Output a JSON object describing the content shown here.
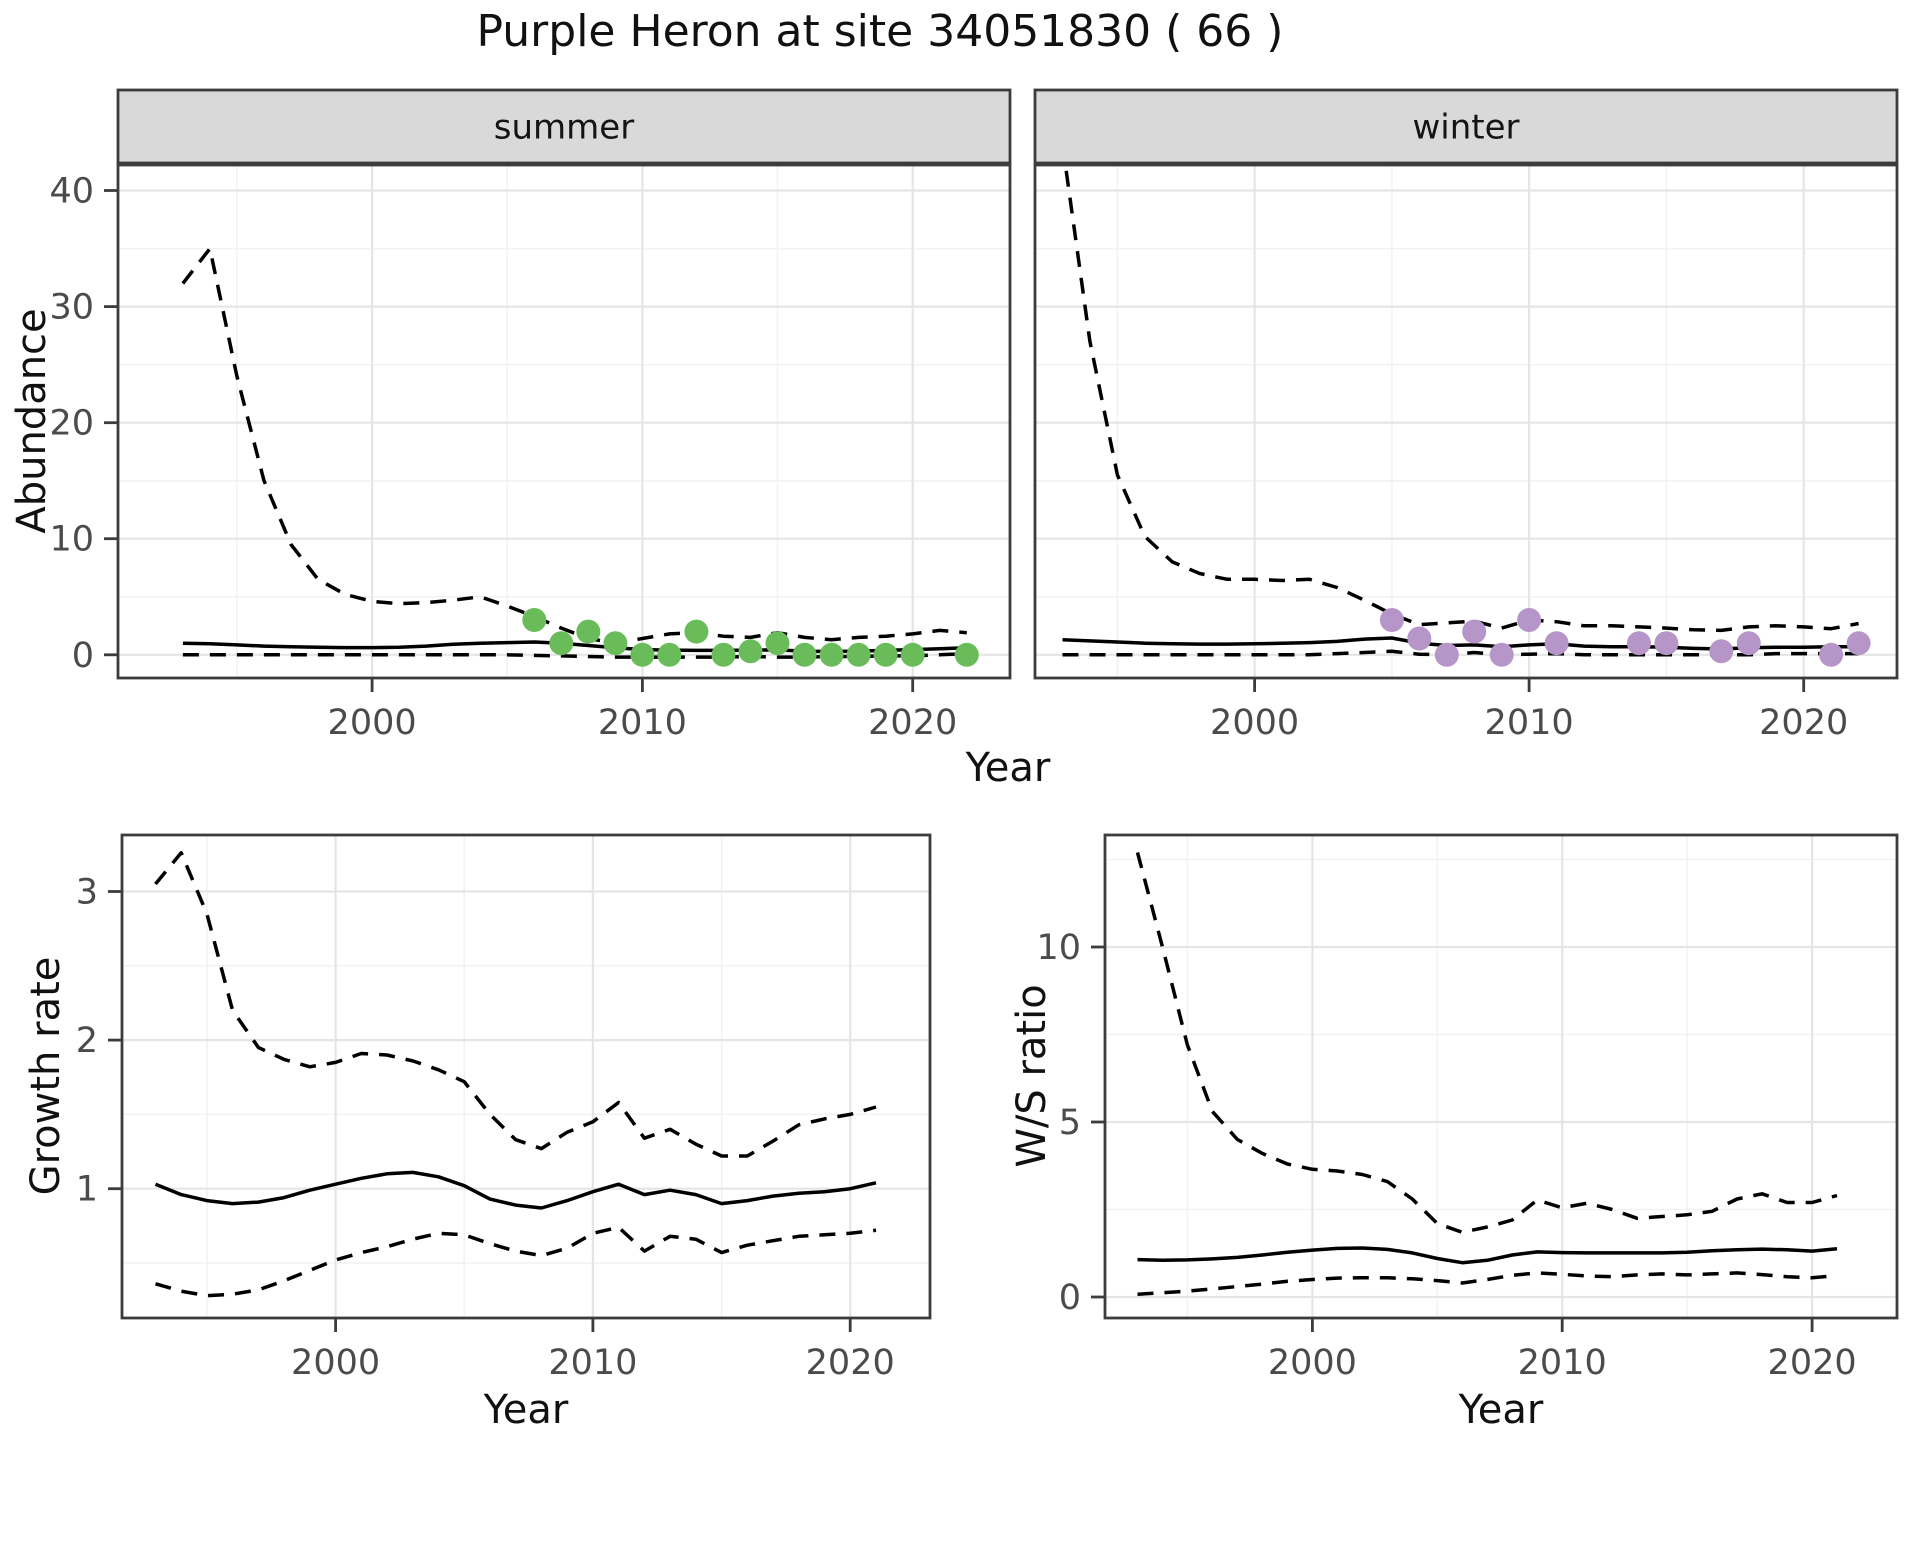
{
  "title": "Purple Heron at site 34051830 ( 66 )",
  "axis_titles": {
    "y_top": "Abundance",
    "y_bottom_left": "Growth rate",
    "y_bottom_right": "W/S ratio",
    "x": "Year"
  },
  "colors": {
    "summer_point": "#6abc5b",
    "winter_point": "#b696c8",
    "line": "#000000",
    "strip_bg": "#d9d9d9",
    "panel_border": "#3c3c3c",
    "grid_major": "#e5e5e5",
    "grid_minor": "#f2f2f2",
    "tick_text": "#4b4b4b"
  },
  "chart_data": [
    {
      "id": "abundance-summer",
      "type": "line",
      "strip": "summer",
      "xlabel": "Year",
      "ylabel": "Abundance",
      "xlim": [
        1990.6,
        2023.6
      ],
      "ylim": [
        -2,
        42.2
      ],
      "xticks": [
        2000,
        2010,
        2020
      ],
      "yticks": [
        0,
        10,
        20,
        30,
        40
      ],
      "xminor": [
        1995,
        2005,
        2015
      ],
      "yminor": [
        5,
        15,
        25,
        35
      ],
      "show_y_tick_labels": true,
      "series": [
        {
          "name": "upper-ci",
          "style": "dashed",
          "x": [
            1993,
            1994,
            1995,
            1996,
            1997,
            1998,
            1999,
            2000,
            2001,
            2002,
            2003,
            2004,
            2005,
            2006,
            2007,
            2008,
            2009,
            2010,
            2011,
            2012,
            2013,
            2014,
            2015,
            2016,
            2017,
            2018,
            2019,
            2020,
            2021,
            2022
          ],
          "y": [
            32,
            35,
            24,
            15,
            9.5,
            6.5,
            5.2,
            4.6,
            4.4,
            4.5,
            4.7,
            5.0,
            4.2,
            3.3,
            2.3,
            1.4,
            1.0,
            1.4,
            1.8,
            1.9,
            1.6,
            1.5,
            1.9,
            1.5,
            1.3,
            1.5,
            1.6,
            1.8,
            2.1,
            1.9
          ]
        },
        {
          "name": "mean",
          "style": "solid",
          "x": [
            1993,
            1994,
            1995,
            1996,
            1997,
            1998,
            1999,
            2000,
            2001,
            2002,
            2003,
            2004,
            2005,
            2006,
            2007,
            2008,
            2009,
            2010,
            2011,
            2012,
            2013,
            2014,
            2015,
            2016,
            2017,
            2018,
            2019,
            2020,
            2021,
            2022
          ],
          "y": [
            1.0,
            0.95,
            0.85,
            0.75,
            0.7,
            0.65,
            0.62,
            0.62,
            0.65,
            0.75,
            0.9,
            1.0,
            1.05,
            1.1,
            1.0,
            0.8,
            0.6,
            0.45,
            0.4,
            0.38,
            0.38,
            0.4,
            0.42,
            0.3,
            0.28,
            0.32,
            0.38,
            0.45,
            0.52,
            0.6
          ]
        },
        {
          "name": "lower-ci",
          "style": "dashed",
          "x": [
            1993,
            1994,
            1995,
            1996,
            1997,
            1998,
            1999,
            2000,
            2001,
            2002,
            2003,
            2004,
            2005,
            2006,
            2007,
            2008,
            2009,
            2010,
            2011,
            2012,
            2013,
            2014,
            2015,
            2016,
            2017,
            2018,
            2019,
            2020,
            2021,
            2022
          ],
          "y": [
            0,
            0,
            0,
            0,
            0,
            0,
            0,
            0,
            0,
            0,
            0,
            0,
            0,
            -0.05,
            -0.1,
            -0.15,
            -0.2,
            -0.2,
            -0.2,
            -0.2,
            -0.2,
            -0.15,
            -0.2,
            -0.2,
            -0.15,
            -0.15,
            -0.1,
            -0.1,
            0,
            0.1
          ]
        }
      ],
      "points": {
        "name": "summer-observations",
        "color": "#6abc5b",
        "x": [
          2006,
          2007,
          2008,
          2009,
          2010,
          2011,
          2012,
          2013,
          2014,
          2015,
          2016,
          2017,
          2018,
          2019,
          2020,
          2022
        ],
        "y": [
          3,
          1,
          2,
          1,
          0,
          0,
          2,
          0,
          0.3,
          1,
          0,
          0,
          0,
          0,
          0,
          0
        ]
      }
    },
    {
      "id": "abundance-winter",
      "type": "line",
      "strip": "winter",
      "xlabel": "Year",
      "ylabel": "Abundance",
      "xlim": [
        1992,
        2023.4
      ],
      "ylim": [
        -2,
        42.2
      ],
      "xticks": [
        2000,
        2010,
        2020
      ],
      "yticks": [
        0,
        10,
        20,
        30,
        40
      ],
      "xminor": [
        1995,
        2005,
        2015
      ],
      "yminor": [
        5,
        15,
        25,
        35
      ],
      "show_y_tick_labels": false,
      "series": [
        {
          "name": "upper-ci",
          "style": "dashed",
          "x": [
            1993,
            1994,
            1995,
            1996,
            1997,
            1998,
            1999,
            2000,
            2001,
            2002,
            2003,
            2004,
            2005,
            2006,
            2007,
            2008,
            2009,
            2010,
            2011,
            2012,
            2013,
            2014,
            2015,
            2016,
            2017,
            2018,
            2019,
            2020,
            2021,
            2022
          ],
          "y": [
            44,
            27,
            15.5,
            10.2,
            8.0,
            7.0,
            6.5,
            6.5,
            6.4,
            6.5,
            5.8,
            4.7,
            3.5,
            2.6,
            2.75,
            2.9,
            2.3,
            3.0,
            2.85,
            2.5,
            2.5,
            2.4,
            2.3,
            2.15,
            2.1,
            2.4,
            2.5,
            2.4,
            2.25,
            2.7
          ]
        },
        {
          "name": "mean",
          "style": "solid",
          "x": [
            1993,
            1994,
            1995,
            1996,
            1997,
            1998,
            1999,
            2000,
            2001,
            2002,
            2003,
            2004,
            2005,
            2006,
            2007,
            2008,
            2009,
            2010,
            2011,
            2012,
            2013,
            2014,
            2015,
            2016,
            2017,
            2018,
            2019,
            2020,
            2021,
            2022
          ],
          "y": [
            1.3,
            1.2,
            1.1,
            1.0,
            0.95,
            0.92,
            0.92,
            0.95,
            1.0,
            1.05,
            1.15,
            1.35,
            1.45,
            1.0,
            0.8,
            0.85,
            0.7,
            0.85,
            0.95,
            0.75,
            0.7,
            0.7,
            0.65,
            0.55,
            0.5,
            0.6,
            0.65,
            0.65,
            0.7,
            0.7
          ]
        },
        {
          "name": "lower-ci",
          "style": "dashed",
          "x": [
            1993,
            1994,
            1995,
            1996,
            1997,
            1998,
            1999,
            2000,
            2001,
            2002,
            2003,
            2004,
            2005,
            2006,
            2007,
            2008,
            2009,
            2010,
            2011,
            2012,
            2013,
            2014,
            2015,
            2016,
            2017,
            2018,
            2019,
            2020,
            2021,
            2022
          ],
          "y": [
            0,
            0,
            0,
            0,
            0,
            0,
            0,
            0,
            0,
            0,
            0.1,
            0.2,
            0.3,
            0.05,
            0,
            0.2,
            0,
            0.05,
            0.1,
            0,
            0,
            0,
            0,
            0,
            0,
            0,
            0.1,
            0.1,
            0.1,
            0.1
          ]
        }
      ],
      "points": {
        "name": "winter-observations",
        "color": "#b696c8",
        "x": [
          2005,
          2006,
          2007,
          2008,
          2009,
          2010,
          2011,
          2014,
          2015,
          2017,
          2018,
          2021,
          2022
        ],
        "y": [
          3,
          1.4,
          0,
          2,
          0,
          3,
          1,
          1,
          1,
          0.3,
          1,
          0,
          1
        ]
      }
    },
    {
      "id": "growth-rate",
      "type": "line",
      "xlabel": "Year",
      "ylabel": "Growth rate",
      "xlim": [
        1991.7,
        2023.1
      ],
      "ylim": [
        0.13,
        3.38
      ],
      "xticks": [
        2000,
        2010,
        2020
      ],
      "yticks": [
        1,
        2,
        3
      ],
      "xminor": [
        1995,
        2005,
        2015
      ],
      "yminor": [
        0.5,
        1.5,
        2.5
      ],
      "show_y_tick_labels": true,
      "series": [
        {
          "name": "upper-ci",
          "style": "dashed",
          "x": [
            1993,
            1994,
            1995,
            1996,
            1997,
            1998,
            1999,
            2000,
            2001,
            2002,
            2003,
            2004,
            2005,
            2006,
            2007,
            2008,
            2009,
            2010,
            2011,
            2012,
            2013,
            2014,
            2015,
            2016,
            2017,
            2018,
            2019,
            2020,
            2021
          ],
          "y": [
            3.05,
            3.26,
            2.85,
            2.2,
            1.95,
            1.87,
            1.82,
            1.85,
            1.91,
            1.9,
            1.86,
            1.8,
            1.72,
            1.5,
            1.33,
            1.27,
            1.38,
            1.45,
            1.58,
            1.34,
            1.4,
            1.3,
            1.22,
            1.22,
            1.32,
            1.43,
            1.47,
            1.5,
            1.55
          ]
        },
        {
          "name": "mean",
          "style": "solid",
          "x": [
            1993,
            1994,
            1995,
            1996,
            1997,
            1998,
            1999,
            2000,
            2001,
            2002,
            2003,
            2004,
            2005,
            2006,
            2007,
            2008,
            2009,
            2010,
            2011,
            2012,
            2013,
            2014,
            2015,
            2016,
            2017,
            2018,
            2019,
            2020,
            2021
          ],
          "y": [
            1.03,
            0.96,
            0.92,
            0.9,
            0.91,
            0.94,
            0.99,
            1.03,
            1.07,
            1.1,
            1.11,
            1.08,
            1.02,
            0.93,
            0.89,
            0.87,
            0.92,
            0.98,
            1.03,
            0.96,
            0.99,
            0.96,
            0.9,
            0.92,
            0.95,
            0.97,
            0.98,
            1.0,
            1.04
          ]
        },
        {
          "name": "lower-ci",
          "style": "dashed",
          "x": [
            1993,
            1994,
            1995,
            1996,
            1997,
            1998,
            1999,
            2000,
            2001,
            2002,
            2003,
            2004,
            2005,
            2006,
            2007,
            2008,
            2009,
            2010,
            2011,
            2012,
            2013,
            2014,
            2015,
            2016,
            2017,
            2018,
            2019,
            2020,
            2021
          ],
          "y": [
            0.36,
            0.31,
            0.28,
            0.29,
            0.32,
            0.38,
            0.45,
            0.52,
            0.57,
            0.61,
            0.66,
            0.7,
            0.69,
            0.63,
            0.58,
            0.55,
            0.6,
            0.7,
            0.74,
            0.58,
            0.68,
            0.66,
            0.57,
            0.62,
            0.65,
            0.68,
            0.69,
            0.7,
            0.72
          ]
        }
      ]
    },
    {
      "id": "ws-ratio",
      "type": "line",
      "xlabel": "Year",
      "ylabel": "W/S ratio",
      "xlim": [
        1991.7,
        2023.4
      ],
      "ylim": [
        -0.6,
        13.2
      ],
      "xticks": [
        2000,
        2010,
        2020
      ],
      "yticks": [
        0,
        5,
        10
      ],
      "xminor": [
        1995,
        2005,
        2015
      ],
      "yminor": [
        2.5,
        7.5,
        12.5
      ],
      "show_y_tick_labels": true,
      "series": [
        {
          "name": "upper-ci",
          "style": "dashed",
          "x": [
            1993,
            1994,
            1995,
            1996,
            1997,
            1998,
            1999,
            2000,
            2001,
            2002,
            2003,
            2004,
            2005,
            2006,
            2007,
            2008,
            2009,
            2010,
            2011,
            2012,
            2013,
            2014,
            2015,
            2016,
            2017,
            2018,
            2019,
            2020,
            2021
          ],
          "y": [
            12.7,
            10.0,
            7.2,
            5.3,
            4.5,
            4.1,
            3.8,
            3.65,
            3.6,
            3.5,
            3.3,
            2.8,
            2.1,
            1.85,
            2.0,
            2.2,
            2.77,
            2.55,
            2.68,
            2.5,
            2.25,
            2.3,
            2.35,
            2.45,
            2.8,
            2.95,
            2.7,
            2.7,
            2.9
          ]
        },
        {
          "name": "mean",
          "style": "solid",
          "x": [
            1993,
            1994,
            1995,
            1996,
            1997,
            1998,
            1999,
            2000,
            2001,
            2002,
            2003,
            2004,
            2005,
            2006,
            2007,
            2008,
            2009,
            2010,
            2011,
            2012,
            2013,
            2014,
            2015,
            2016,
            2017,
            2018,
            2019,
            2020,
            2021
          ],
          "y": [
            1.07,
            1.05,
            1.06,
            1.09,
            1.13,
            1.2,
            1.28,
            1.34,
            1.39,
            1.4,
            1.36,
            1.26,
            1.1,
            0.98,
            1.05,
            1.2,
            1.29,
            1.27,
            1.26,
            1.26,
            1.26,
            1.26,
            1.28,
            1.32,
            1.35,
            1.37,
            1.35,
            1.31,
            1.38
          ]
        },
        {
          "name": "lower-ci",
          "style": "dashed",
          "x": [
            1993,
            1994,
            1995,
            1996,
            1997,
            1998,
            1999,
            2000,
            2001,
            2002,
            2003,
            2004,
            2005,
            2006,
            2007,
            2008,
            2009,
            2010,
            2011,
            2012,
            2013,
            2014,
            2015,
            2016,
            2017,
            2018,
            2019,
            2020,
            2021
          ],
          "y": [
            0.08,
            0.12,
            0.17,
            0.23,
            0.3,
            0.37,
            0.45,
            0.5,
            0.54,
            0.55,
            0.55,
            0.52,
            0.47,
            0.4,
            0.5,
            0.62,
            0.69,
            0.65,
            0.6,
            0.58,
            0.63,
            0.66,
            0.63,
            0.66,
            0.69,
            0.64,
            0.58,
            0.55,
            0.61
          ]
        }
      ]
    }
  ]
}
